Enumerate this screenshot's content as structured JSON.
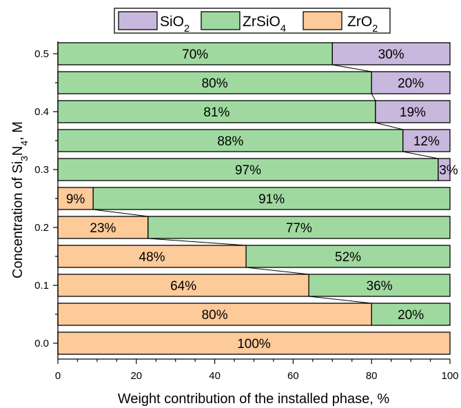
{
  "chart_data": {
    "type": "bar",
    "orientation": "horizontal",
    "stacked": true,
    "title": "",
    "xlabel": "Weight contribution of the installed phase, %",
    "ylabel": "Concentration of Si3N4, M",
    "xlim": [
      0,
      100
    ],
    "ylim": [
      0.0,
      0.5
    ],
    "x_ticks": [
      0,
      20,
      40,
      60,
      80,
      100
    ],
    "y_ticks": [
      0.0,
      0.1,
      0.2,
      0.3,
      0.4,
      0.5
    ],
    "grid": false,
    "legend_position": "top-center",
    "categories": [
      0.0,
      0.05,
      0.1,
      0.15,
      0.2,
      0.25,
      0.3,
      0.35,
      0.4,
      0.45,
      0.5
    ],
    "series": [
      {
        "name": "ZrO2",
        "color": "#fdca9a",
        "values": [
          100,
          80,
          64,
          48,
          23,
          9,
          0,
          0,
          0,
          0,
          0
        ],
        "labels": [
          "100%",
          "80%",
          "64%",
          "48%",
          "23%",
          "9%",
          "",
          "",
          "",
          "",
          ""
        ]
      },
      {
        "name": "ZrSiO4",
        "color": "#a0d9a0",
        "values": [
          0,
          20,
          36,
          52,
          77,
          91,
          97,
          88,
          81,
          80,
          70
        ],
        "labels": [
          "",
          "20%",
          "36%",
          "52%",
          "77%",
          "91%",
          "97%",
          "88%",
          "81%",
          "80%",
          "70%"
        ]
      },
      {
        "name": "SiO2",
        "color": "#c9b8dd",
        "values": [
          0,
          0,
          0,
          0,
          0,
          0,
          3,
          12,
          19,
          20,
          30
        ],
        "labels": [
          "",
          "",
          "",
          "",
          "",
          "",
          "3%",
          "12%",
          "19%",
          "20%",
          "30%"
        ]
      }
    ],
    "legend": [
      {
        "name": "SiO2",
        "color": "#c9b8dd",
        "parts": [
          {
            "t": "SiO",
            "sub": false
          },
          {
            "t": "2",
            "sub": true
          }
        ]
      },
      {
        "name": "ZrSiO4",
        "color": "#a0d9a0",
        "parts": [
          {
            "t": "ZrSiO",
            "sub": false
          },
          {
            "t": "4",
            "sub": true
          }
        ]
      },
      {
        "name": "ZrO2",
        "color": "#fdca9a",
        "parts": [
          {
            "t": "ZrO",
            "sub": false
          },
          {
            "t": "2",
            "sub": true
          }
        ]
      }
    ],
    "ylabel_parts": [
      {
        "t": "Concentration of Si",
        "sub": false
      },
      {
        "t": "3",
        "sub": true
      },
      {
        "t": "N",
        "sub": false
      },
      {
        "t": "4",
        "sub": true
      },
      {
        "t": ", M",
        "sub": false
      }
    ]
  }
}
